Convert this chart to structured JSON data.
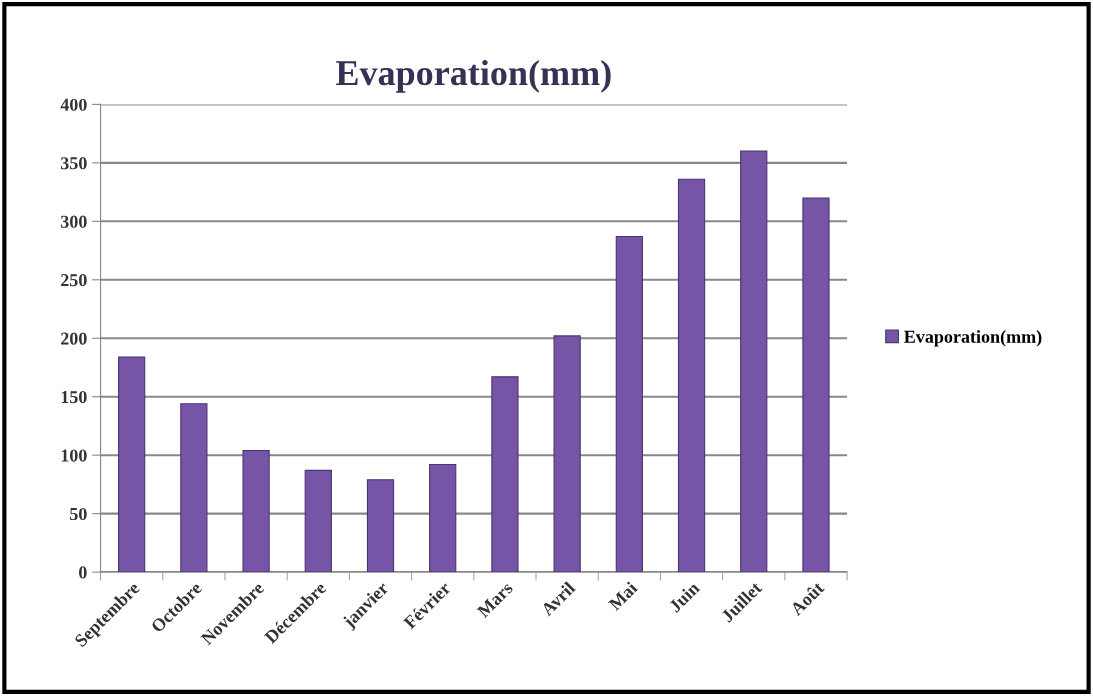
{
  "chart_data": {
    "type": "bar",
    "title": "Evaporation(mm)",
    "categories": [
      "Septembre",
      "Octobre",
      "Novembre",
      "Décembre",
      "janvier",
      "Février",
      "Mars",
      "Avril",
      "Mai",
      "Juin",
      "Juillet",
      "Août"
    ],
    "series": [
      {
        "name": "Evaporation(mm)",
        "color": "#7654a6",
        "values": [
          184,
          144,
          104,
          87,
          79,
          92,
          167,
          202,
          287,
          336,
          360,
          320
        ]
      }
    ],
    "ylim": [
      0,
      400
    ],
    "yticks": [
      0,
      50,
      100,
      150,
      200,
      250,
      300,
      350,
      400
    ],
    "grid": "y",
    "legend": "right"
  }
}
